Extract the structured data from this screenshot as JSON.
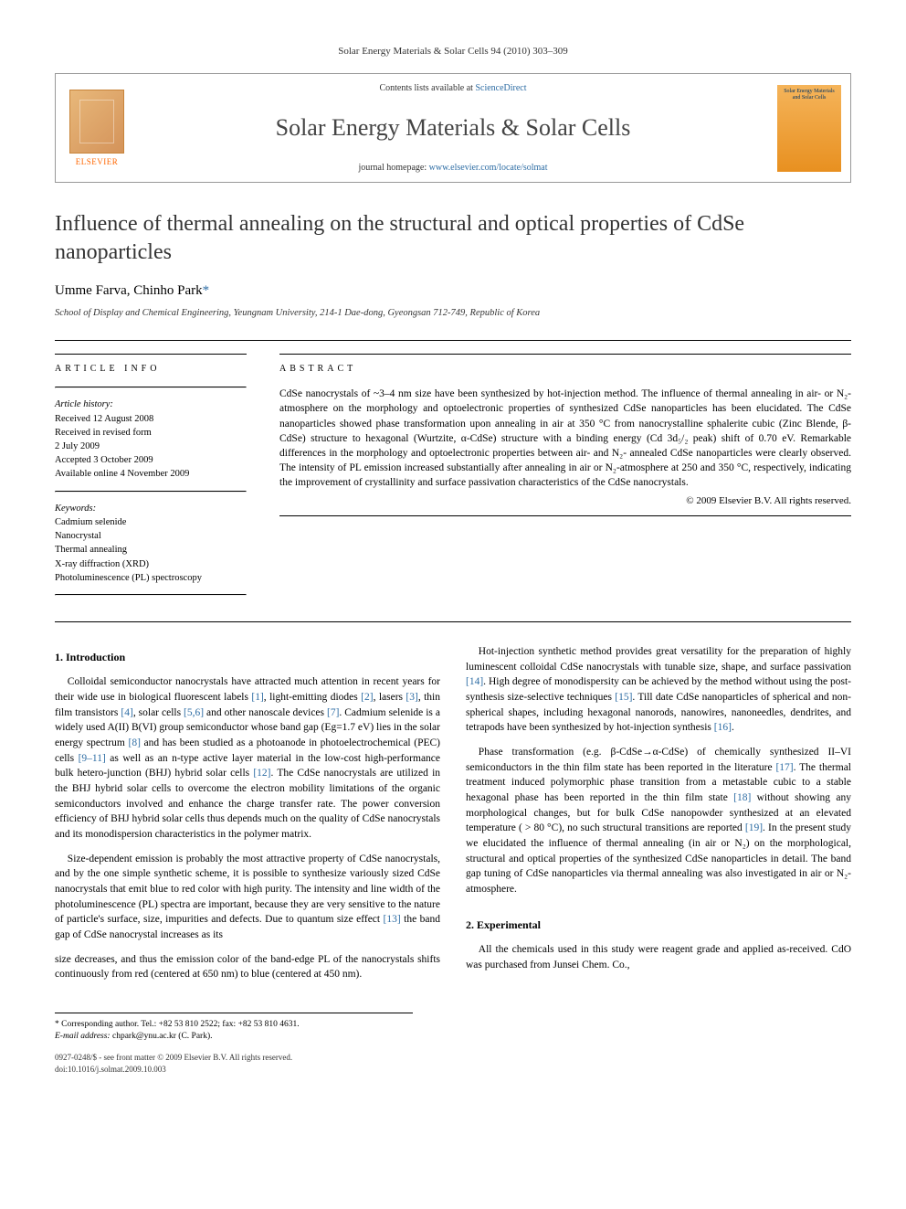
{
  "running_head": "Solar Energy Materials & Solar Cells 94 (2010) 303–309",
  "masthead": {
    "contents_prefix": "Contents lists available at ",
    "contents_link": "ScienceDirect",
    "journal": "Solar Energy Materials & Solar Cells",
    "homepage_prefix": "journal homepage: ",
    "homepage_link": "www.elsevier.com/locate/solmat",
    "publisher": "ELSEVIER",
    "cover_caption": "Solar Energy Materials and Solar Cells"
  },
  "title": "Influence of thermal annealing on the structural and optical properties of CdSe nanoparticles",
  "authors_text": "Umme Farva, Chinho Park",
  "corresponding_mark": "*",
  "affiliation": "School of Display and Chemical Engineering, Yeungnam University, 214-1 Dae-dong, Gyeongsan 712-749, Republic of Korea",
  "article_info": {
    "heading": "ARTICLE INFO",
    "history_label": "Article history:",
    "history": [
      "Received 12 August 2008",
      "Received in revised form",
      "2 July 2009",
      "Accepted 3 October 2009",
      "Available online 4 November 2009"
    ],
    "keywords_label": "Keywords:",
    "keywords": [
      "Cadmium selenide",
      "Nanocrystal",
      "Thermal annealing",
      "X-ray diffraction (XRD)",
      "Photoluminescence (PL) spectroscopy"
    ]
  },
  "abstract": {
    "heading": "ABSTRACT",
    "text": "CdSe nanocrystals of ~3–4 nm size have been synthesized by hot-injection method. The influence of thermal annealing in air- or N₂-atmosphere on the morphology and optoelectronic properties of synthesized CdSe nanoparticles has been elucidated. The CdSe nanoparticles showed phase transformation upon annealing in air at 350 °C from nanocrystalline sphalerite cubic (Zinc Blende, β-CdSe) structure to hexagonal (Wurtzite, α-CdSe) structure with a binding energy (Cd 3d₅/₂ peak) shift of 0.70 eV. Remarkable differences in the morphology and optoelectronic properties between air- and N₂- annealed CdSe nanoparticles were clearly observed. The intensity of PL emission increased substantially after annealing in air or N₂-atmosphere at 250 and 350 °C, respectively, indicating the improvement of crystallinity and surface passivation characteristics of the CdSe nanocrystals.",
    "copyright": "© 2009 Elsevier B.V. All rights reserved."
  },
  "sections": {
    "intro_head": "1.  Introduction",
    "intro_p1": "Colloidal semiconductor nanocrystals have attracted much attention in recent years for their wide use in biological fluorescent labels [1], light-emitting diodes [2], lasers [3], thin film transistors [4], solar cells [5,6] and other nanoscale devices [7]. Cadmium selenide is a widely used A(II) B(VI) group semiconductor whose band gap (Eg=1.7 eV) lies in the solar energy spectrum [8] and has been studied as a photoanode in photoelectrochemical (PEC) cells [9–11] as well as an n-type active layer material in the low-cost high-performance bulk hetero-junction (BHJ) hybrid solar cells [12]. The CdSe nanocrystals are utilized in the BHJ hybrid solar cells to overcome the electron mobility limitations of the organic semiconductors involved and enhance the charge transfer rate. The power conversion efficiency of BHJ hybrid solar cells thus depends much on the quality of CdSe nanocrystals and its monodispersion characteristics in the polymer matrix.",
    "intro_p2": "Size-dependent emission is probably the most attractive property of CdSe nanocrystals, and by the one simple synthetic scheme, it is possible to synthesize variously sized CdSe nanocrystals that emit blue to red color with high purity. The intensity and line width of the photoluminescence (PL) spectra are important, because they are very sensitive to the nature of particle's surface, size, impurities and defects. Due to quantum size effect [13] the band gap of CdSe nanocrystal increases as its",
    "intro_p3": "size decreases, and thus the emission color of the band-edge PL of the nanocrystals shifts continuously from red (centered at 650 nm) to blue (centered at 450 nm).",
    "intro_p4": "Hot-injection synthetic method provides great versatility for the preparation of highly luminescent colloidal CdSe nanocrystals with tunable size, shape, and surface passivation [14]. High degree of monodispersity can be achieved by the method without using the post-synthesis size-selective techniques [15]. Till date CdSe nanoparticles of spherical and non-spherical shapes, including hexagonal nanorods, nanowires, nanoneedles, dendrites, and tetrapods have been synthesized by hot-injection synthesis [16].",
    "intro_p5": "Phase transformation (e.g. β-CdSe→α-CdSe) of chemically synthesized II–VI semiconductors in the thin film state has been reported in the literature [17]. The thermal treatment induced polymorphic phase transition from a metastable cubic to a stable hexagonal phase has been reported in the thin film state [18] without showing any morphological changes, but for bulk CdSe nanopowder synthesized at an elevated temperature ( > 80 °C), no such structural transitions are reported [19]. In the present study we elucidated the influence of thermal annealing (in air or N₂) on the morphological, structural and optical properties of the synthesized CdSe nanoparticles in detail. The band gap tuning of CdSe nanoparticles via thermal annealing was also investigated in air or N₂-atmosphere.",
    "exp_head": "2.  Experimental",
    "exp_p1": "All the chemicals used in this study were reagent grade and applied as-received. CdO was purchased from Junsei Chem. Co.,"
  },
  "footnote": {
    "corr": "* Corresponding author. Tel.: +82 53 810 2522; fax: +82 53 810 4631.",
    "email_label": "E-mail address:",
    "email": "chpark@ynu.ac.kr (C. Park)."
  },
  "doi": {
    "line1": "0927-0248/$ - see front matter © 2009 Elsevier B.V. All rights reserved.",
    "line2": "doi:10.1016/j.solmat.2009.10.003"
  },
  "colors": {
    "link": "#2e6da4",
    "elsevier_orange": "#ff6600",
    "text": "#000000"
  }
}
